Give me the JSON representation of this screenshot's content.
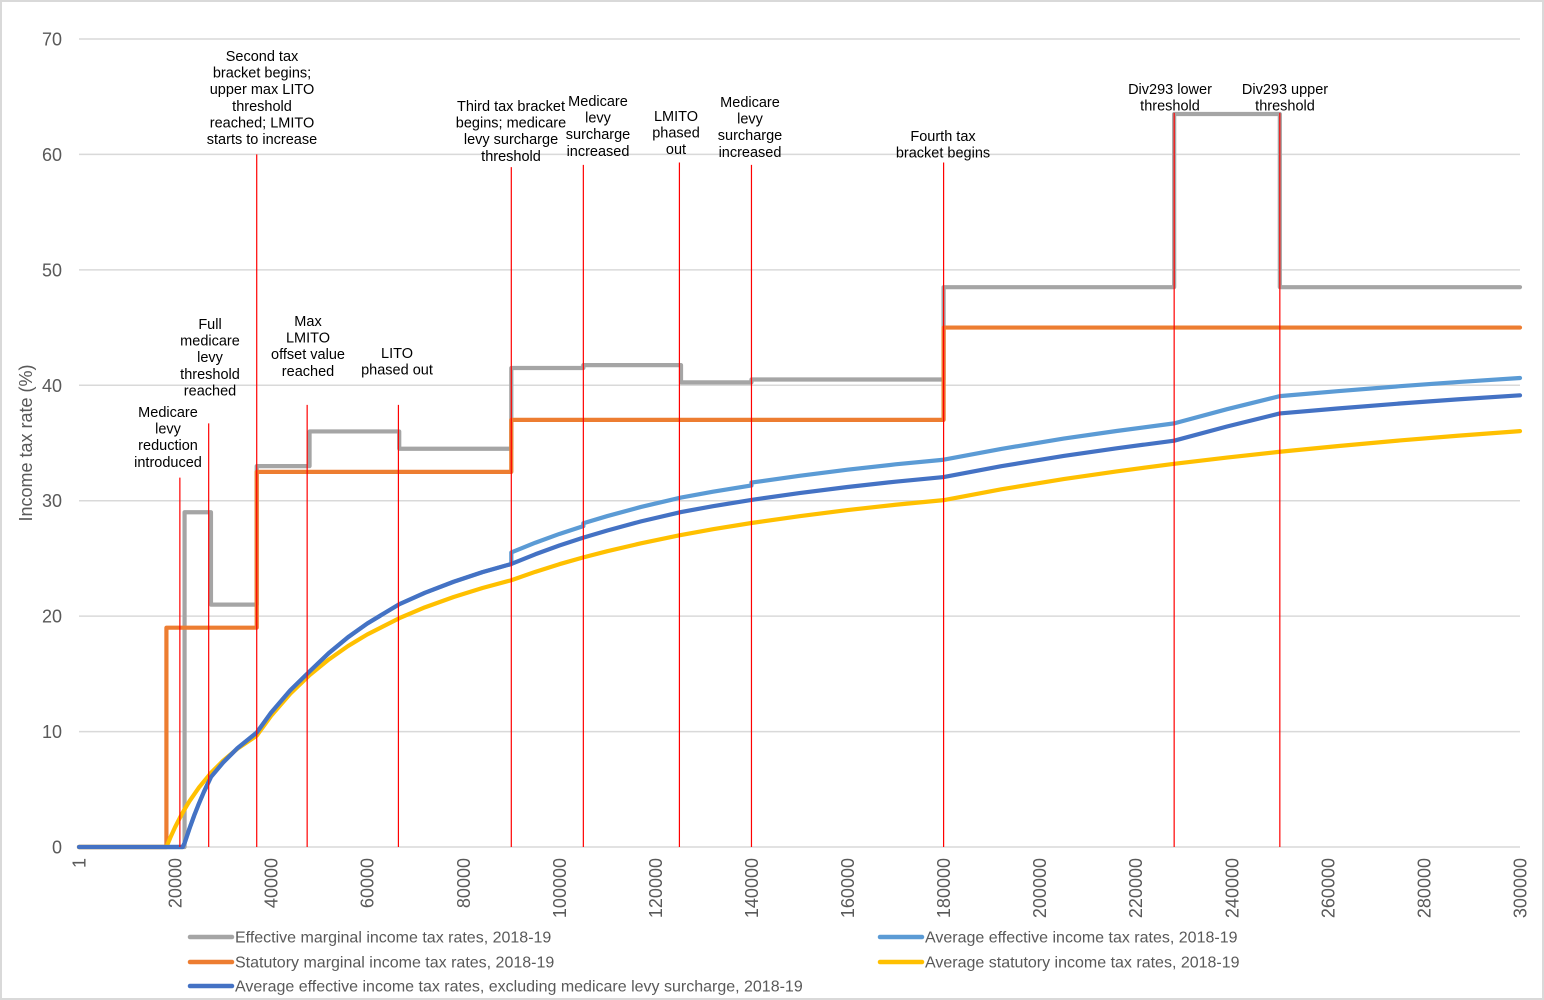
{
  "chart_data": {
    "type": "line",
    "title": "",
    "xlabel": "",
    "ylabel": "Income tax rate (%)",
    "xlim": [
      1,
      300000
    ],
    "ylim": [
      0,
      70
    ],
    "grid": "horizontal",
    "legend": "bottom",
    "yticks": [
      {
        "value": 0,
        "label": "0"
      },
      {
        "value": 10,
        "label": "10"
      },
      {
        "value": 20,
        "label": "20"
      },
      {
        "value": 30,
        "label": "30"
      },
      {
        "value": 40,
        "label": "40"
      },
      {
        "value": 50,
        "label": "50"
      },
      {
        "value": 60,
        "label": "60"
      },
      {
        "value": 70,
        "label": "70"
      }
    ],
    "xticks": [
      {
        "value": 1,
        "label": "1"
      },
      {
        "value": 20000,
        "label": "20000"
      },
      {
        "value": 40000,
        "label": "40000"
      },
      {
        "value": 60000,
        "label": "60000"
      },
      {
        "value": 80000,
        "label": "80000"
      },
      {
        "value": 100000,
        "label": "100000"
      },
      {
        "value": 120000,
        "label": "120000"
      },
      {
        "value": 140000,
        "label": "140000"
      },
      {
        "value": 160000,
        "label": "160000"
      },
      {
        "value": 180000,
        "label": "180000"
      },
      {
        "value": 200000,
        "label": "200000"
      },
      {
        "value": 220000,
        "label": "220000"
      },
      {
        "value": 240000,
        "label": "240000"
      },
      {
        "value": 260000,
        "label": "260000"
      },
      {
        "value": 280000,
        "label": "280000"
      },
      {
        "value": 300000,
        "label": "300000"
      }
    ],
    "series": [
      {
        "name": "Effective marginal income tax rates, 2018-19",
        "color": "#A5A5A5",
        "style": "step",
        "points": [
          [
            1,
            0
          ],
          [
            21980,
            0
          ],
          [
            21980,
            29
          ],
          [
            27475,
            29
          ],
          [
            27475,
            21
          ],
          [
            37000,
            21
          ],
          [
            37000,
            33
          ],
          [
            48000,
            33
          ],
          [
            48000,
            36
          ],
          [
            66667,
            36
          ],
          [
            66667,
            34.5
          ],
          [
            90000,
            34.5
          ],
          [
            90000,
            41.5
          ],
          [
            105000,
            41.5
          ],
          [
            105000,
            41.75
          ],
          [
            125333,
            41.75
          ],
          [
            125333,
            40.25
          ],
          [
            140000,
            40.25
          ],
          [
            140000,
            40.5
          ],
          [
            180000,
            40.5
          ],
          [
            180000,
            48.5
          ],
          [
            228000,
            48.5
          ],
          [
            228000,
            63.5
          ],
          [
            250000,
            63.5
          ],
          [
            250000,
            48.5
          ],
          [
            300000,
            48.5
          ]
        ]
      },
      {
        "name": "Average effective income tax rates, 2018-19",
        "color": "#5B9BD5",
        "style": "line",
        "points": [
          [
            1,
            0
          ],
          [
            21600,
            0
          ],
          [
            22000,
            0.36
          ],
          [
            23000,
            1.6
          ],
          [
            24000,
            2.75
          ],
          [
            25000,
            3.8
          ],
          [
            26000,
            4.77
          ],
          [
            27475,
            6.07
          ],
          [
            30000,
            7.32
          ],
          [
            33000,
            8.57
          ],
          [
            37000,
            9.91
          ],
          [
            40000,
            11.64
          ],
          [
            44000,
            13.58
          ],
          [
            48000,
            15.2
          ],
          [
            52000,
            16.8
          ],
          [
            56000,
            18.17
          ],
          [
            60000,
            19.36
          ],
          [
            66667,
            21.03
          ],
          [
            72000,
            22.02
          ],
          [
            78000,
            22.98
          ],
          [
            84000,
            23.81
          ],
          [
            90000,
            24.52
          ],
          [
            90000,
            25.52
          ],
          [
            95000,
            26.36
          ],
          [
            100000,
            27.12
          ],
          [
            105000,
            27.8
          ],
          [
            105000,
            28.05
          ],
          [
            110000,
            28.67
          ],
          [
            117000,
            29.46
          ],
          [
            125333,
            30.27
          ],
          [
            132000,
            30.78
          ],
          [
            140000,
            31.32
          ],
          [
            140000,
            31.57
          ],
          [
            150000,
            32.16
          ],
          [
            160000,
            32.69
          ],
          [
            170000,
            33.15
          ],
          [
            180000,
            33.55
          ],
          [
            192000,
            34.49
          ],
          [
            205000,
            35.38
          ],
          [
            216000,
            36.04
          ],
          [
            228000,
            36.7
          ],
          [
            239000,
            37.93
          ],
          [
            250000,
            39.06
          ],
          [
            262000,
            39.49
          ],
          [
            275000,
            39.92
          ],
          [
            287000,
            40.28
          ],
          [
            300000,
            40.63
          ]
        ]
      },
      {
        "name": "Statutory marginal income tax rates, 2018-19",
        "color": "#ED7D31",
        "style": "step",
        "points": [
          [
            1,
            0
          ],
          [
            18200,
            0
          ],
          [
            18200,
            19
          ],
          [
            37000,
            19
          ],
          [
            37000,
            32.5
          ],
          [
            90000,
            32.5
          ],
          [
            90000,
            37
          ],
          [
            180000,
            37
          ],
          [
            180000,
            45
          ],
          [
            300000,
            45
          ]
        ]
      },
      {
        "name": "Average statutory income tax rates, 2018-19",
        "color": "#FFC000",
        "style": "line",
        "points": [
          [
            1,
            0
          ],
          [
            18200,
            0
          ],
          [
            19000,
            0.8
          ],
          [
            20000,
            1.71
          ],
          [
            21000,
            2.53
          ],
          [
            22000,
            3.28
          ],
          [
            23000,
            3.97
          ],
          [
            25000,
            5.17
          ],
          [
            27500,
            6.43
          ],
          [
            30000,
            7.47
          ],
          [
            33000,
            8.52
          ],
          [
            37000,
            9.65
          ],
          [
            40000,
            11.37
          ],
          [
            44000,
            13.29
          ],
          [
            48000,
            14.89
          ],
          [
            52000,
            16.24
          ],
          [
            56000,
            17.41
          ],
          [
            60000,
            18.41
          ],
          [
            66667,
            19.82
          ],
          [
            72000,
            20.76
          ],
          [
            78000,
            21.66
          ],
          [
            84000,
            22.44
          ],
          [
            90000,
            23.11
          ],
          [
            95000,
            23.84
          ],
          [
            100000,
            24.5
          ],
          [
            105000,
            25.09
          ],
          [
            110000,
            25.63
          ],
          [
            117000,
            26.31
          ],
          [
            125000,
            27.0
          ],
          [
            132000,
            27.53
          ],
          [
            140000,
            28.07
          ],
          [
            150000,
            28.66
          ],
          [
            160000,
            29.19
          ],
          [
            170000,
            29.65
          ],
          [
            180000,
            30.05
          ],
          [
            192000,
            30.99
          ],
          [
            205000,
            31.88
          ],
          [
            216000,
            32.54
          ],
          [
            228000,
            33.2
          ],
          [
            239000,
            33.74
          ],
          [
            250000,
            34.24
          ],
          [
            262000,
            34.73
          ],
          [
            275000,
            35.22
          ],
          [
            287000,
            35.63
          ],
          [
            300000,
            36.03
          ]
        ]
      },
      {
        "name": "Average effective income tax rates, excluding medicare levy surcharge, 2018-19",
        "color": "#4472C4",
        "style": "line",
        "points": [
          [
            1,
            0
          ],
          [
            21600,
            0
          ],
          [
            22000,
            0.36
          ],
          [
            23000,
            1.6
          ],
          [
            24000,
            2.75
          ],
          [
            25000,
            3.8
          ],
          [
            26000,
            4.77
          ],
          [
            27475,
            6.07
          ],
          [
            30000,
            7.32
          ],
          [
            33000,
            8.57
          ],
          [
            37000,
            9.91
          ],
          [
            40000,
            11.64
          ],
          [
            44000,
            13.58
          ],
          [
            48000,
            15.2
          ],
          [
            52000,
            16.8
          ],
          [
            56000,
            18.17
          ],
          [
            60000,
            19.36
          ],
          [
            66667,
            21.03
          ],
          [
            72000,
            22.02
          ],
          [
            78000,
            22.98
          ],
          [
            84000,
            23.81
          ],
          [
            90000,
            24.52
          ],
          [
            95000,
            25.36
          ],
          [
            100000,
            26.12
          ],
          [
            105000,
            26.8
          ],
          [
            110000,
            27.42
          ],
          [
            117000,
            28.21
          ],
          [
            125333,
            29.02
          ],
          [
            132000,
            29.53
          ],
          [
            140000,
            30.07
          ],
          [
            150000,
            30.66
          ],
          [
            160000,
            31.19
          ],
          [
            170000,
            31.65
          ],
          [
            180000,
            32.05
          ],
          [
            192000,
            32.99
          ],
          [
            205000,
            33.88
          ],
          [
            216000,
            34.54
          ],
          [
            228000,
            35.2
          ],
          [
            239000,
            36.43
          ],
          [
            250000,
            37.56
          ],
          [
            262000,
            37.99
          ],
          [
            275000,
            38.42
          ],
          [
            287000,
            38.78
          ],
          [
            300000,
            39.13
          ]
        ]
      }
    ],
    "annotation_color": "#FF0000",
    "annotations": [
      {
        "x": 21000,
        "y": 32,
        "text": [
          "Medicare",
          "levy",
          "reduction",
          "introduced"
        ]
      },
      {
        "x": 27000,
        "y": 36.7,
        "text": [
          "Full",
          "medicare",
          "levy",
          "threshold",
          "reached"
        ]
      },
      {
        "x": 37000,
        "y": 60,
        "text": [
          "Second tax",
          "bracket begins;",
          "upper max LITO",
          "threshold",
          "reached; LMITO",
          "starts to increase"
        ]
      },
      {
        "x": 47500,
        "y": 38.3,
        "text": [
          "Max",
          "LMITO",
          "offset value",
          "reached"
        ]
      },
      {
        "x": 66500,
        "y": 38.3,
        "text": [
          "LITO",
          "phased out"
        ]
      },
      {
        "x": 90000,
        "y": 58.9,
        "text": [
          "Third tax bracket",
          "begins; medicare",
          "levy surcharge",
          "threshold"
        ]
      },
      {
        "x": 105000,
        "y": 59.1,
        "text": [
          "Medicare",
          "levy",
          "surcharge",
          "increased"
        ]
      },
      {
        "x": 125000,
        "y": 59.3,
        "text": [
          "LMITO",
          "phased",
          "out"
        ]
      },
      {
        "x": 140000,
        "y": 59.1,
        "text": [
          "Medicare",
          "levy",
          "surcharge",
          "increased"
        ]
      },
      {
        "x": 180000,
        "y": 59.3,
        "text": [
          "Fourth tax",
          "bracket begins"
        ]
      },
      {
        "x": 228000,
        "y": 63.6,
        "text": [
          "Div293 lower",
          "threshold"
        ]
      },
      {
        "x": 250000,
        "y": 63.6,
        "text": [
          "Div293 upper",
          "threshold"
        ]
      }
    ]
  }
}
